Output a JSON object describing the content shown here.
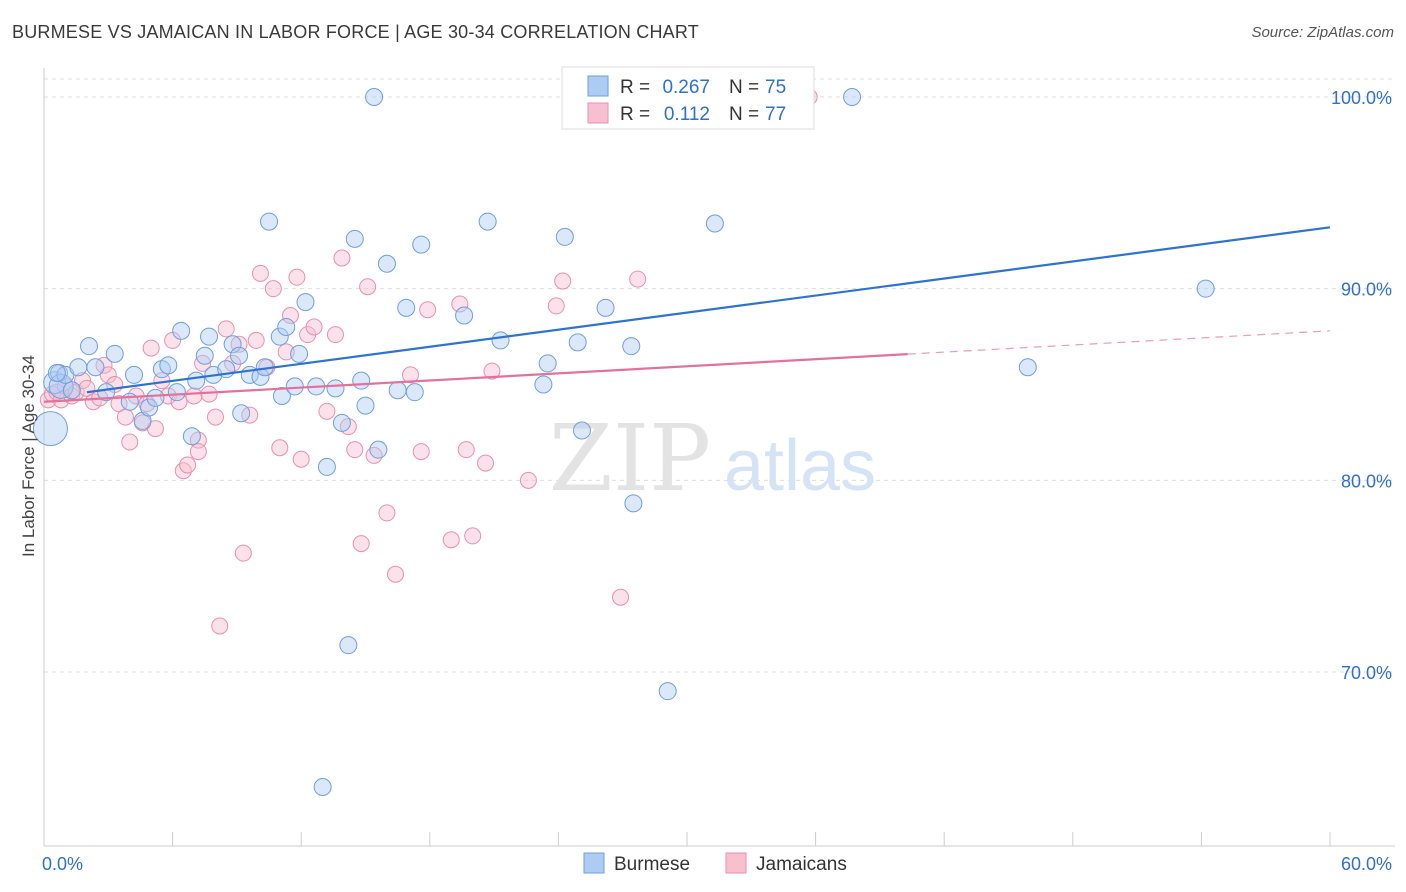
{
  "chart_data": {
    "type": "scatter",
    "title": "BURMESE VS JAMAICAN IN LABOR FORCE | AGE 30-34 CORRELATION CHART",
    "source": "Source: ZipAtlas.com",
    "ylabel": "In Labor Force | Age 30-34",
    "xlim": [
      0,
      60
    ],
    "ylim": [
      61,
      102
    ],
    "x_tick_labels": [
      "0.0%",
      "60.0%"
    ],
    "y_ticks": [
      {
        "value": 100,
        "label": "100.0%"
      },
      {
        "value": 90,
        "label": "90.0%"
      },
      {
        "value": 80,
        "label": "80.0%"
      },
      {
        "value": 70,
        "label": "70.0%"
      }
    ],
    "grid": true,
    "watermark": {
      "zip": "ZIP",
      "atlas": "atlas"
    },
    "legend": [
      {
        "name": "Burmese",
        "r_label": "R =",
        "r": "0.267",
        "n_label": "N =",
        "n": "75"
      },
      {
        "name": "Jamaicans",
        "r_label": "R =",
        "r": "0.112",
        "n_label": "N =",
        "n": "77"
      }
    ],
    "colors": {
      "burmese_fill": "#aecbf3",
      "burmese_stroke": "#6f9fde",
      "burmese_line": "#2f73d0",
      "jamaican_fill": "#f7bfd0",
      "jamaican_stroke": "#ea8fae",
      "jamaican_line": "#e4719a",
      "value_text": "#2f6fce"
    },
    "series": [
      {
        "name": "Burmese",
        "trend": {
          "x": [
            0,
            60
          ],
          "y": [
            84.3,
            93.2
          ],
          "dashed_from": null
        },
        "points": [
          [
            0.3,
            82.7
          ],
          [
            0.5,
            85.1
          ],
          [
            0.7,
            85.6
          ],
          [
            0.8,
            84.9
          ],
          [
            1.0,
            85.5
          ],
          [
            1.3,
            84.7
          ],
          [
            1.6,
            85.9
          ],
          [
            2.1,
            87.0
          ],
          [
            2.4,
            85.9
          ],
          [
            2.9,
            84.6
          ],
          [
            3.3,
            86.6
          ],
          [
            4.0,
            84.1
          ],
          [
            4.2,
            85.5
          ],
          [
            4.6,
            83.1
          ],
          [
            4.9,
            83.8
          ],
          [
            5.2,
            84.3
          ],
          [
            5.5,
            85.8
          ],
          [
            5.8,
            86.0
          ],
          [
            6.2,
            84.6
          ],
          [
            6.4,
            87.8
          ],
          [
            6.9,
            82.3
          ],
          [
            7.1,
            85.2
          ],
          [
            7.5,
            86.5
          ],
          [
            7.7,
            87.5
          ],
          [
            7.9,
            85.5
          ],
          [
            8.5,
            85.8
          ],
          [
            8.8,
            87.1
          ],
          [
            9.1,
            86.5
          ],
          [
            9.2,
            83.5
          ],
          [
            9.6,
            85.5
          ],
          [
            10.1,
            85.4
          ],
          [
            10.3,
            85.9
          ],
          [
            10.5,
            93.5
          ],
          [
            11.0,
            87.5
          ],
          [
            11.1,
            84.4
          ],
          [
            11.3,
            88.0
          ],
          [
            11.7,
            84.9
          ],
          [
            11.9,
            86.6
          ],
          [
            12.2,
            89.3
          ],
          [
            12.7,
            84.9
          ],
          [
            13.0,
            64.0
          ],
          [
            13.2,
            80.7
          ],
          [
            13.6,
            84.8
          ],
          [
            13.9,
            83.0
          ],
          [
            14.2,
            71.4
          ],
          [
            14.5,
            92.6
          ],
          [
            14.8,
            85.2
          ],
          [
            15.0,
            83.9
          ],
          [
            15.4,
            100.0
          ],
          [
            15.6,
            81.6
          ],
          [
            16.0,
            91.3
          ],
          [
            16.5,
            84.7
          ],
          [
            16.9,
            89.0
          ],
          [
            17.3,
            84.6
          ],
          [
            17.6,
            92.3
          ],
          [
            19.6,
            88.6
          ],
          [
            20.7,
            93.5
          ],
          [
            21.3,
            87.3
          ],
          [
            23.3,
            85.0
          ],
          [
            23.5,
            86.1
          ],
          [
            24.3,
            92.7
          ],
          [
            24.6,
            100.0
          ],
          [
            24.9,
            87.2
          ],
          [
            25.1,
            82.6
          ],
          [
            25.9,
            100.0
          ],
          [
            26.2,
            89.0
          ],
          [
            27.4,
            87.0
          ],
          [
            27.5,
            78.8
          ],
          [
            29.1,
            69.0
          ],
          [
            31.3,
            93.4
          ],
          [
            32.1,
            100.0
          ],
          [
            37.7,
            100.0
          ],
          [
            45.9,
            85.9
          ],
          [
            54.2,
            90.0
          ],
          [
            0.6,
            85.6
          ]
        ]
      },
      {
        "name": "Jamaicans",
        "trend": {
          "x": [
            0,
            60
          ],
          "y": [
            84.1,
            87.8
          ],
          "dashed_from": 40
        }
      }
    ],
    "jamaican_points": [
      [
        0.2,
        84.2
      ],
      [
        0.4,
        84.5
      ],
      [
        0.6,
        84.6
      ],
      [
        0.8,
        84.2
      ],
      [
        1.0,
        84.9
      ],
      [
        1.3,
        84.4
      ],
      [
        1.5,
        84.6
      ],
      [
        1.8,
        85.2
      ],
      [
        2.0,
        84.8
      ],
      [
        2.3,
        84.1
      ],
      [
        2.6,
        84.3
      ],
      [
        2.8,
        86.0
      ],
      [
        3.0,
        85.5
      ],
      [
        3.3,
        85.0
      ],
      [
        3.5,
        84.0
      ],
      [
        3.8,
        83.3
      ],
      [
        4.0,
        82.0
      ],
      [
        4.3,
        84.4
      ],
      [
        4.6,
        83.0
      ],
      [
        4.8,
        84.0
      ],
      [
        5.0,
        86.9
      ],
      [
        5.2,
        82.7
      ],
      [
        5.5,
        85.2
      ],
      [
        5.8,
        84.4
      ],
      [
        6.0,
        87.3
      ],
      [
        6.3,
        84.1
      ],
      [
        6.5,
        80.5
      ],
      [
        6.7,
        80.8
      ],
      [
        7.0,
        84.4
      ],
      [
        7.2,
        82.1
      ],
      [
        7.4,
        86.1
      ],
      [
        7.7,
        84.5
      ],
      [
        8.0,
        83.3
      ],
      [
        8.2,
        72.4
      ],
      [
        8.5,
        87.9
      ],
      [
        8.8,
        86.1
      ],
      [
        9.1,
        87.1
      ],
      [
        9.3,
        76.2
      ],
      [
        9.6,
        83.4
      ],
      [
        9.9,
        87.3
      ],
      [
        10.1,
        90.8
      ],
      [
        10.4,
        85.9
      ],
      [
        10.7,
        90.0
      ],
      [
        11.0,
        81.7
      ],
      [
        11.3,
        86.7
      ],
      [
        11.5,
        88.6
      ],
      [
        11.8,
        90.6
      ],
      [
        12.0,
        81.1
      ],
      [
        12.3,
        87.6
      ],
      [
        12.6,
        88.0
      ],
      [
        13.2,
        83.6
      ],
      [
        13.6,
        87.6
      ],
      [
        13.9,
        91.6
      ],
      [
        14.2,
        82.8
      ],
      [
        14.5,
        81.6
      ],
      [
        14.8,
        76.7
      ],
      [
        15.1,
        90.1
      ],
      [
        15.4,
        81.3
      ],
      [
        16.0,
        78.3
      ],
      [
        16.4,
        75.1
      ],
      [
        17.1,
        85.5
      ],
      [
        17.6,
        81.5
      ],
      [
        17.9,
        88.9
      ],
      [
        19.0,
        76.9
      ],
      [
        19.4,
        89.2
      ],
      [
        19.7,
        81.6
      ],
      [
        20.0,
        77.1
      ],
      [
        20.6,
        80.9
      ],
      [
        20.9,
        85.7
      ],
      [
        22.6,
        80.0
      ],
      [
        23.9,
        89.1
      ],
      [
        24.2,
        90.4
      ],
      [
        26.9,
        73.9
      ],
      [
        27.7,
        90.5
      ],
      [
        28.7,
        100.0
      ],
      [
        35.7,
        100.0
      ],
      [
        7.2,
        81.5
      ]
    ]
  }
}
